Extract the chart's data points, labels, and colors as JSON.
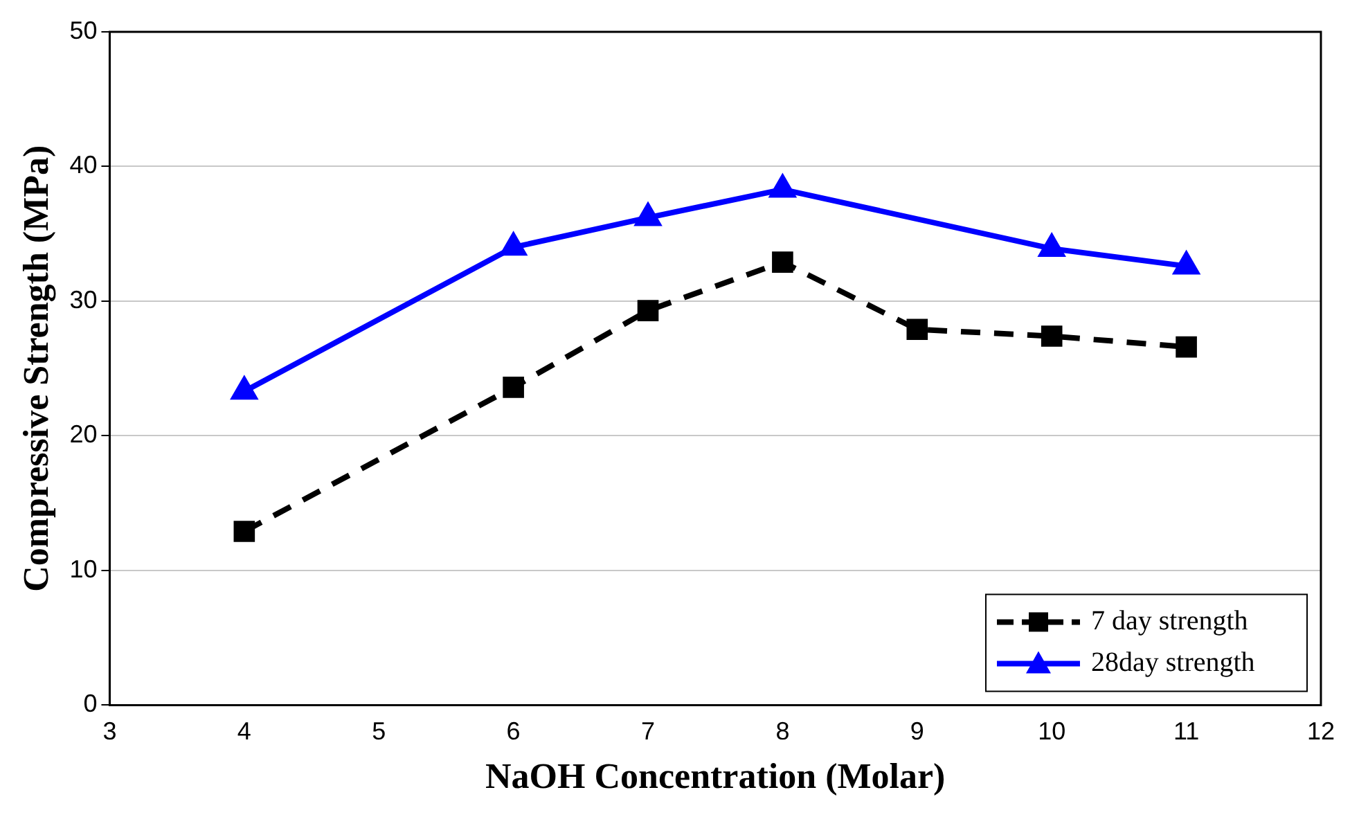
{
  "chart_data": {
    "type": "line",
    "xlabel": "NaOH Concentration (Molar)",
    "ylabel": "Compressive Strength (MPa)",
    "xlim": [
      3,
      12
    ],
    "xticks": [
      3,
      4,
      5,
      6,
      7,
      8,
      9,
      10,
      11,
      12
    ],
    "ylim": [
      0,
      50
    ],
    "yticks": [
      0,
      10,
      20,
      30,
      40,
      50
    ],
    "grid": "y",
    "legend": "bottom right",
    "series": [
      {
        "name": "7 day strength",
        "color": "#000000",
        "marker": "square",
        "line_style": "dashed",
        "x": [
          4,
          6,
          7,
          8,
          9,
          10,
          11
        ],
        "values": [
          12.9,
          23.6,
          29.3,
          32.9,
          27.9,
          27.4,
          26.6
        ]
      },
      {
        "name": "28day strength",
        "color": "#0000ff",
        "marker": "triangle",
        "line_style": "solid",
        "x": [
          4,
          6,
          7,
          8,
          10,
          11
        ],
        "values": [
          23.3,
          34.0,
          36.2,
          38.3,
          33.9,
          32.6
        ]
      }
    ]
  }
}
